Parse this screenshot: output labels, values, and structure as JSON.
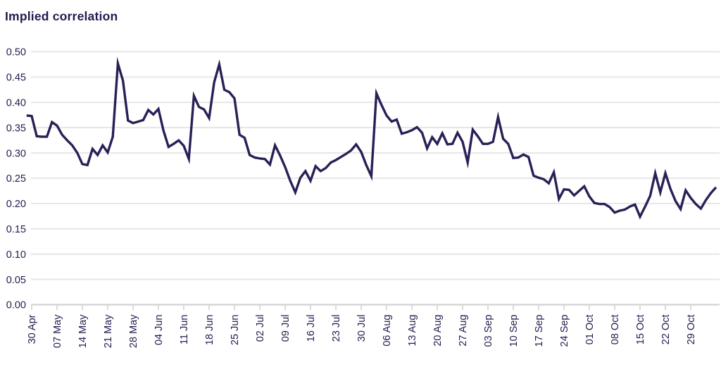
{
  "title": "Implied correlation",
  "colors": {
    "line": "#282157",
    "text": "#211c4e",
    "gridline": "#e4e4e4",
    "axis": "#d2d2d2",
    "background": "#ffffff"
  },
  "chart_data": {
    "type": "line",
    "title": "Implied correlation",
    "xlabel": "",
    "ylabel": "",
    "ylim": [
      0.0,
      0.5
    ],
    "ytick_step": 0.05,
    "grid": "horizontal",
    "legend": "none",
    "x_frequency": "business-daily",
    "x_start": "27 Apr",
    "x_end": "05 Nov",
    "yticks": [
      "0.50",
      "0.45",
      "0.40",
      "0.35",
      "0.30",
      "0.25",
      "0.20",
      "0.15",
      "0.10",
      "0.05",
      "0.00"
    ],
    "xticks": [
      "30 Apr",
      "07 May",
      "14 May",
      "21 May",
      "28 May",
      "04 Jun",
      "11 Jun",
      "18 Jun",
      "25 Jun",
      "02 Jul",
      "09 Jul",
      "16 Jul",
      "23 Jul",
      "30 Jul",
      "06 Aug",
      "13 Aug",
      "20 Aug",
      "27 Aug",
      "03 Sep",
      "10 Sep",
      "17 Sep",
      "24 Sep",
      "01 Oct",
      "08 Oct",
      "15 Oct",
      "22 Oct",
      "29 Oct"
    ],
    "series": [
      {
        "name": "Implied correlation",
        "dates": [
          "27 Apr",
          "30 Apr",
          "01 May",
          "02 May",
          "03 May",
          "04 May",
          "07 May",
          "08 May",
          "09 May",
          "10 May",
          "11 May",
          "14 May",
          "15 May",
          "16 May",
          "17 May",
          "18 May",
          "21 May",
          "22 May",
          "23 May",
          "24 May",
          "25 May",
          "28 May",
          "29 May",
          "30 May",
          "31 May",
          "01 Jun",
          "04 Jun",
          "05 Jun",
          "06 Jun",
          "07 Jun",
          "08 Jun",
          "11 Jun",
          "12 Jun",
          "13 Jun",
          "14 Jun",
          "15 Jun",
          "18 Jun",
          "19 Jun",
          "20 Jun",
          "21 Jun",
          "22 Jun",
          "25 Jun",
          "26 Jun",
          "27 Jun",
          "28 Jun",
          "29 Jun",
          "02 Jul",
          "03 Jul",
          "04 Jul",
          "05 Jul",
          "06 Jul",
          "09 Jul",
          "10 Jul",
          "11 Jul",
          "12 Jul",
          "13 Jul",
          "16 Jul",
          "17 Jul",
          "18 Jul",
          "19 Jul",
          "20 Jul",
          "23 Jul",
          "24 Jul",
          "25 Jul",
          "26 Jul",
          "27 Jul",
          "30 Jul",
          "31 Jul",
          "01 Aug",
          "02 Aug",
          "03 Aug",
          "06 Aug",
          "07 Aug",
          "08 Aug",
          "09 Aug",
          "10 Aug",
          "13 Aug",
          "14 Aug",
          "15 Aug",
          "16 Aug",
          "17 Aug",
          "20 Aug",
          "21 Aug",
          "22 Aug",
          "23 Aug",
          "24 Aug",
          "27 Aug",
          "28 Aug",
          "29 Aug",
          "30 Aug",
          "31 Aug",
          "03 Sep",
          "04 Sep",
          "05 Sep",
          "06 Sep",
          "07 Sep",
          "10 Sep",
          "11 Sep",
          "12 Sep",
          "13 Sep",
          "14 Sep",
          "17 Sep",
          "18 Sep",
          "19 Sep",
          "20 Sep",
          "21 Sep",
          "24 Sep",
          "25 Sep",
          "26 Sep",
          "27 Sep",
          "28 Sep",
          "01 Oct",
          "02 Oct",
          "03 Oct",
          "04 Oct",
          "05 Oct",
          "08 Oct",
          "09 Oct",
          "10 Oct",
          "11 Oct",
          "12 Oct",
          "15 Oct",
          "16 Oct",
          "17 Oct",
          "18 Oct",
          "19 Oct",
          "22 Oct",
          "23 Oct",
          "24 Oct",
          "25 Oct",
          "26 Oct",
          "29 Oct",
          "30 Oct",
          "31 Oct",
          "01 Nov",
          "02 Nov",
          "05 Nov"
        ],
        "values": [
          0.374,
          0.373,
          0.333,
          0.332,
          0.332,
          0.361,
          0.354,
          0.336,
          0.325,
          0.315,
          0.3,
          0.278,
          0.276,
          0.308,
          0.296,
          0.315,
          0.301,
          0.332,
          0.477,
          0.443,
          0.364,
          0.359,
          0.362,
          0.365,
          0.385,
          0.376,
          0.387,
          0.344,
          0.312,
          0.318,
          0.325,
          0.314,
          0.288,
          0.413,
          0.391,
          0.386,
          0.369,
          0.44,
          0.475,
          0.425,
          0.42,
          0.408,
          0.336,
          0.33,
          0.296,
          0.291,
          0.289,
          0.288,
          0.277,
          0.315,
          0.295,
          0.272,
          0.245,
          0.222,
          0.251,
          0.264,
          0.245,
          0.274,
          0.264,
          0.27,
          0.281,
          0.286,
          0.292,
          0.298,
          0.305,
          0.317,
          0.302,
          0.276,
          0.254,
          0.418,
          0.395,
          0.374,
          0.362,
          0.366,
          0.338,
          0.341,
          0.345,
          0.351,
          0.34,
          0.309,
          0.331,
          0.318,
          0.339,
          0.317,
          0.318,
          0.34,
          0.322,
          0.281,
          0.346,
          0.333,
          0.318,
          0.318,
          0.322,
          0.371,
          0.328,
          0.318,
          0.29,
          0.291,
          0.297,
          0.292,
          0.255,
          0.251,
          0.248,
          0.24,
          0.262,
          0.209,
          0.228,
          0.227,
          0.216,
          0.225,
          0.234,
          0.214,
          0.201,
          0.199,
          0.199,
          0.193,
          0.182,
          0.186,
          0.188,
          0.194,
          0.198,
          0.174,
          0.194,
          0.215,
          0.26,
          0.222,
          0.26,
          0.229,
          0.205,
          0.189,
          0.226,
          0.211,
          0.199,
          0.19,
          0.207,
          0.221,
          0.232
        ]
      }
    ]
  }
}
